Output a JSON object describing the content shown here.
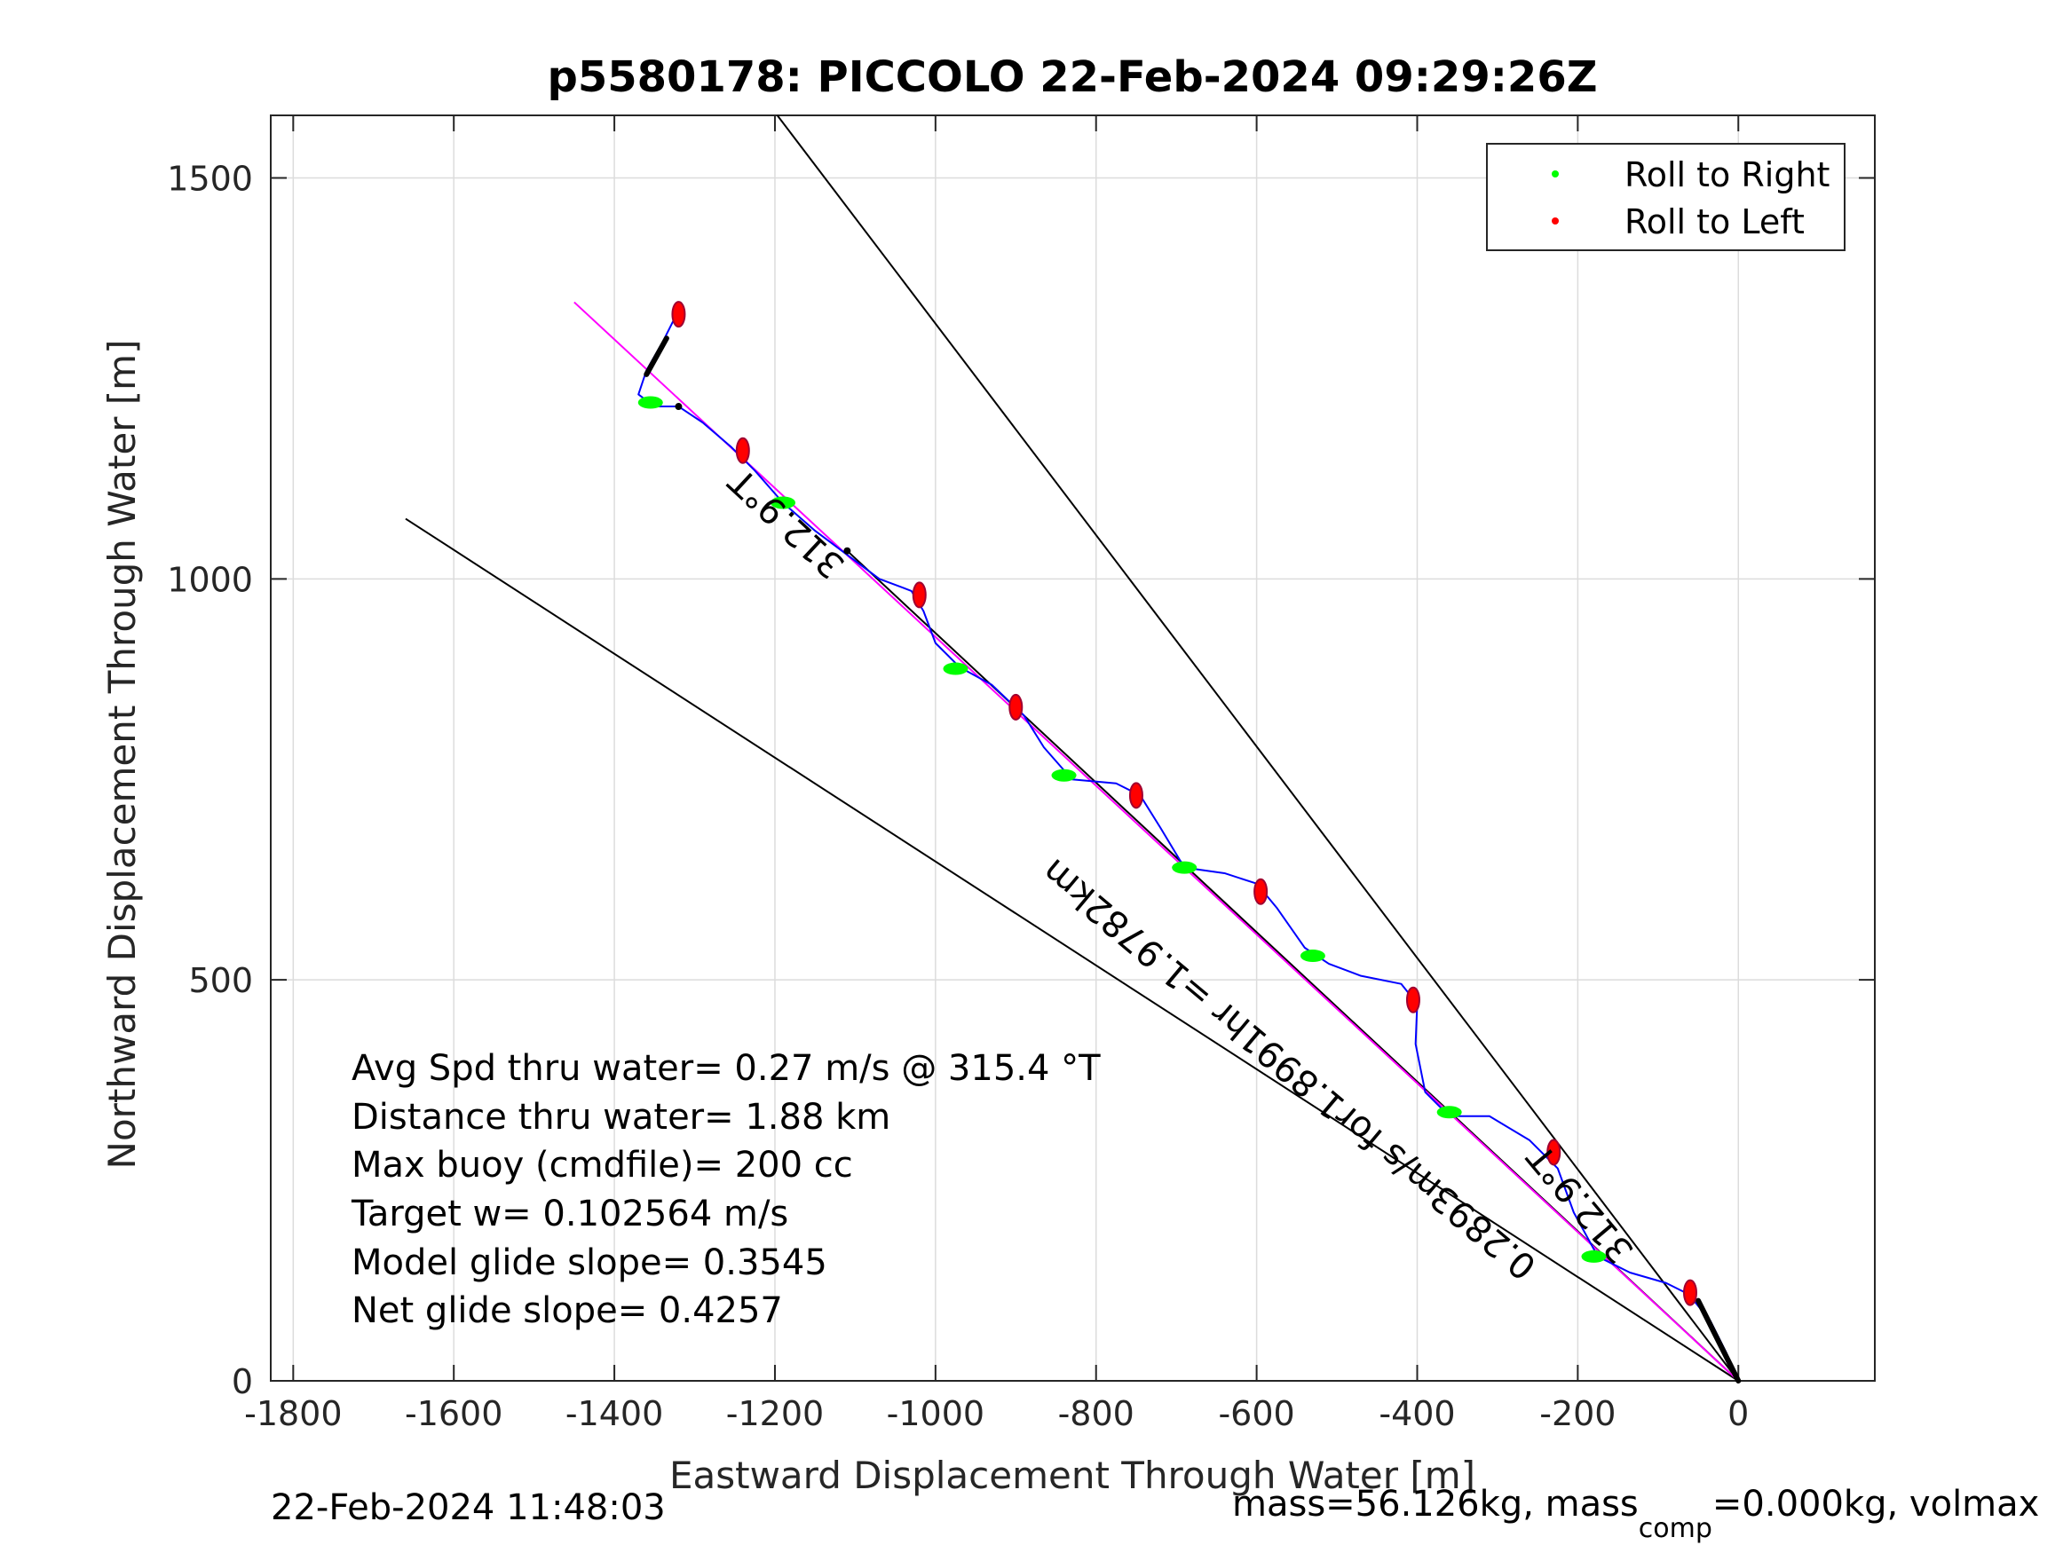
{
  "chart_data": {
    "type": "line",
    "title": "p5580178: PICCOLO 22-Feb-2024 09:29:26Z",
    "xlabel": "Eastward Displacement Through Water [m]",
    "ylabel": "Northward Displacement Through Water [m]",
    "xlim": [
      -1828,
      170
    ],
    "ylim": [
      0,
      1578
    ],
    "xticks": [
      -1800,
      -1600,
      -1400,
      -1200,
      -1000,
      -800,
      -600,
      -400,
      -200,
      0
    ],
    "yticks": [
      0,
      500,
      1000,
      1500
    ],
    "grid": true,
    "legend": {
      "position": "top-right",
      "entries": [
        "Roll to Right",
        "Roll to Left"
      ]
    },
    "colors": {
      "roll_right": "#00ff00",
      "roll_left": "#ff0000",
      "track": "#0000ff",
      "mean_line": "#ff00ff",
      "lines": "#000000"
    },
    "track": [
      [
        0,
        0
      ],
      [
        -15,
        35
      ],
      [
        -35,
        75
      ],
      [
        -62,
        108
      ],
      [
        -90,
        122
      ],
      [
        -135,
        135
      ],
      [
        -175,
        155
      ],
      [
        -205,
        210
      ],
      [
        -225,
        265
      ],
      [
        -260,
        300
      ],
      [
        -310,
        330
      ],
      [
        -360,
        330
      ],
      [
        -390,
        360
      ],
      [
        -402,
        420
      ],
      [
        -400,
        470
      ],
      [
        -420,
        495
      ],
      [
        -470,
        505
      ],
      [
        -510,
        520
      ],
      [
        -540,
        540
      ],
      [
        -575,
        590
      ],
      [
        -600,
        620
      ],
      [
        -640,
        633
      ],
      [
        -690,
        640
      ],
      [
        -720,
        690
      ],
      [
        -745,
        730
      ],
      [
        -775,
        745
      ],
      [
        -830,
        750
      ],
      [
        -865,
        790
      ],
      [
        -890,
        830
      ],
      [
        -930,
        868
      ],
      [
        -970,
        890
      ],
      [
        -1000,
        920
      ],
      [
        -1015,
        960
      ],
      [
        -1030,
        985
      ],
      [
        -1070,
        1000
      ],
      [
        -1110,
        1030
      ],
      [
        -1150,
        1060
      ],
      [
        -1190,
        1095
      ],
      [
        -1225,
        1135
      ],
      [
        -1255,
        1165
      ],
      [
        -1290,
        1195
      ],
      [
        -1320,
        1215
      ],
      [
        -1350,
        1215
      ],
      [
        -1370,
        1230
      ],
      [
        -1360,
        1260
      ],
      [
        -1340,
        1295
      ],
      [
        -1320,
        1335
      ]
    ],
    "roll_right_points": [
      [
        -1355,
        1220
      ],
      [
        -1190,
        1095
      ],
      [
        -975,
        888
      ],
      [
        -840,
        755
      ],
      [
        -690,
        640
      ],
      [
        -530,
        530
      ],
      [
        -360,
        335
      ],
      [
        -180,
        155
      ]
    ],
    "roll_left_points": [
      [
        -1320,
        1330
      ],
      [
        -1240,
        1160
      ],
      [
        -1020,
        980
      ],
      [
        -900,
        840
      ],
      [
        -750,
        730
      ],
      [
        -595,
        610
      ],
      [
        -405,
        475
      ],
      [
        -230,
        285
      ],
      [
        -60,
        110
      ]
    ],
    "mean_line": {
      "from": [
        0,
        0
      ],
      "to": [
        -1450,
        1345
      ],
      "heading_label": "312.9°T",
      "speed_label": "0.2893m/s for1.8991hr =1.9782km"
    },
    "wedge_lines": [
      {
        "from": [
          0,
          0
        ],
        "to": [
          -1660,
          1075
        ]
      },
      {
        "from": [
          0,
          0
        ],
        "to": [
          -1197,
          1578
        ]
      },
      {
        "from": [
          0,
          0
        ],
        "to": [
          -1110,
          1035
        ]
      }
    ],
    "heading_label_2": "312.9°T",
    "stats": [
      "Avg Spd thru water=  0.27 m/s @ 315.4 °T",
      "Distance thru water=  1.88 km",
      "Max buoy (cmdfile)= 200 cc",
      "Target w= 0.102564 m/s",
      "Model glide slope= 0.3545",
      "Net glide slope= 0.4257"
    ],
    "footer_left": "22-Feb-2024 11:48:03",
    "footer_right_a": "mass=56.126kg, mass",
    "footer_right_sub": "comp",
    "footer_right_b": "=0.000kg, volmax"
  }
}
